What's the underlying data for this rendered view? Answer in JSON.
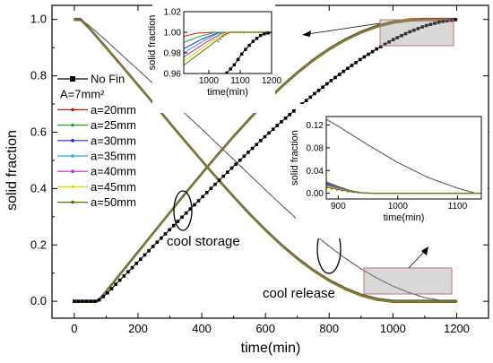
{
  "chart_data": {
    "type": "line",
    "xlabel": "time(min)",
    "ylabel": "solid fraction",
    "xlim": [
      -70,
      1300
    ],
    "ylim": [
      -0.06,
      1.05
    ],
    "xticks": [
      0,
      200,
      400,
      600,
      800,
      1000,
      1200
    ],
    "yticks": [
      0.0,
      0.2,
      0.4,
      0.6,
      0.8,
      1.0
    ],
    "xtick_labels": [
      "0",
      "200",
      "400",
      "600",
      "800",
      "1000",
      "1200"
    ],
    "ytick_labels": [
      "0.0",
      "0.2",
      "0.4",
      "0.6",
      "0.8",
      "1.0"
    ],
    "legend_title": "A=7mm²",
    "legend_position": "left",
    "series": [
      {
        "name": "No Fin",
        "color": "#000000",
        "marker": "square"
      },
      {
        "name": "a=20mm",
        "color": "#cc1111",
        "marker": "dot"
      },
      {
        "name": "a=25mm",
        "color": "#22aa22",
        "marker": "dot"
      },
      {
        "name": "a=30mm",
        "color": "#2222cc",
        "marker": "dot"
      },
      {
        "name": "a=35mm",
        "color": "#22aadd",
        "marker": "dot"
      },
      {
        "name": "a=40mm",
        "color": "#cc22cc",
        "marker": "dot"
      },
      {
        "name": "a=45mm",
        "color": "#dddd00",
        "marker": "dot"
      },
      {
        "name": "a=50mm",
        "color": "#666600",
        "marker": "dot"
      }
    ],
    "curves": {
      "nofin_storage": {
        "x": [
          0,
          70,
          80,
          100,
          150,
          200,
          250,
          300,
          350,
          400,
          450,
          500,
          550,
          600,
          650,
          700,
          750,
          800,
          850,
          900,
          950,
          1000,
          1050,
          1100,
          1150,
          1200
        ],
        "y": [
          0.0,
          0.0,
          0.006,
          0.025,
          0.083,
          0.14,
          0.198,
          0.255,
          0.312,
          0.368,
          0.424,
          0.479,
          0.533,
          0.586,
          0.637,
          0.686,
          0.733,
          0.778,
          0.82,
          0.86,
          0.896,
          0.928,
          0.955,
          0.977,
          0.992,
          1.0
        ]
      },
      "nofin_release": {
        "x": [
          0,
          20,
          50,
          100,
          150,
          200,
          250,
          300,
          350,
          400,
          450,
          500,
          550,
          600,
          650,
          700,
          750,
          800,
          850,
          900,
          950,
          1000,
          1050,
          1100,
          1150,
          1200
        ],
        "y": [
          1.0,
          1.0,
          0.975,
          0.925,
          0.873,
          0.822,
          0.77,
          0.717,
          0.664,
          0.611,
          0.557,
          0.503,
          0.449,
          0.395,
          0.342,
          0.29,
          0.241,
          0.195,
          0.153,
          0.115,
          0.082,
          0.054,
          0.031,
          0.013,
          0.003,
          0.0
        ]
      },
      "finned_storage": {
        "x": [
          0,
          70,
          80,
          100,
          150,
          200,
          250,
          300,
          350,
          400,
          450,
          500,
          550,
          600,
          650,
          700,
          750,
          800,
          850,
          900,
          950,
          1000,
          1050,
          1100,
          1150,
          1200
        ],
        "y": [
          0.0,
          0.0,
          0.008,
          0.035,
          0.105,
          0.175,
          0.245,
          0.315,
          0.385,
          0.453,
          0.52,
          0.585,
          0.647,
          0.706,
          0.761,
          0.811,
          0.856,
          0.895,
          0.928,
          0.955,
          0.976,
          0.99,
          0.998,
          1.0,
          1.0,
          1.0
        ]
      },
      "finned_release": {
        "x": [
          0,
          20,
          50,
          100,
          150,
          200,
          250,
          300,
          350,
          400,
          450,
          500,
          550,
          600,
          650,
          700,
          750,
          800,
          850,
          900,
          950,
          1000,
          1050,
          1100,
          1150,
          1200
        ],
        "y": [
          1.0,
          1.0,
          0.965,
          0.9,
          0.834,
          0.767,
          0.7,
          0.632,
          0.565,
          0.499,
          0.434,
          0.371,
          0.31,
          0.253,
          0.2,
          0.152,
          0.11,
          0.074,
          0.045,
          0.022,
          0.007,
          0.0,
          0.0,
          0.0,
          0.0,
          0.0
        ]
      }
    },
    "annotations": {
      "storage_label": "cool storage",
      "release_label": "cool release"
    },
    "inset_top": {
      "xlabel": "time(min)",
      "ylabel": "solid fraction",
      "xlim": [
        920,
        1200
      ],
      "ylim": [
        0.96,
        1.02
      ],
      "xticks": [
        1000,
        1100,
        1200
      ],
      "yticks": [
        0.96,
        0.98,
        1.0,
        1.02
      ],
      "xtick_labels": [
        "1000",
        "1100",
        "1200"
      ],
      "ytick_labels": [
        "0.96",
        "0.98",
        "1.00",
        "1.02"
      ]
    },
    "inset_bottom": {
      "xlabel": "time(min)",
      "ylabel": "solid fraction",
      "xlim": [
        880,
        1140
      ],
      "ylim": [
        -0.01,
        0.135
      ],
      "xticks": [
        900,
        1000,
        1100
      ],
      "yticks": [
        0.0,
        0.04,
        0.08,
        0.12
      ],
      "xtick_labels": [
        "900",
        "1000",
        "1100"
      ],
      "ytick_labels": [
        "0.00",
        "0.04",
        "0.08",
        "0.12"
      ]
    }
  }
}
